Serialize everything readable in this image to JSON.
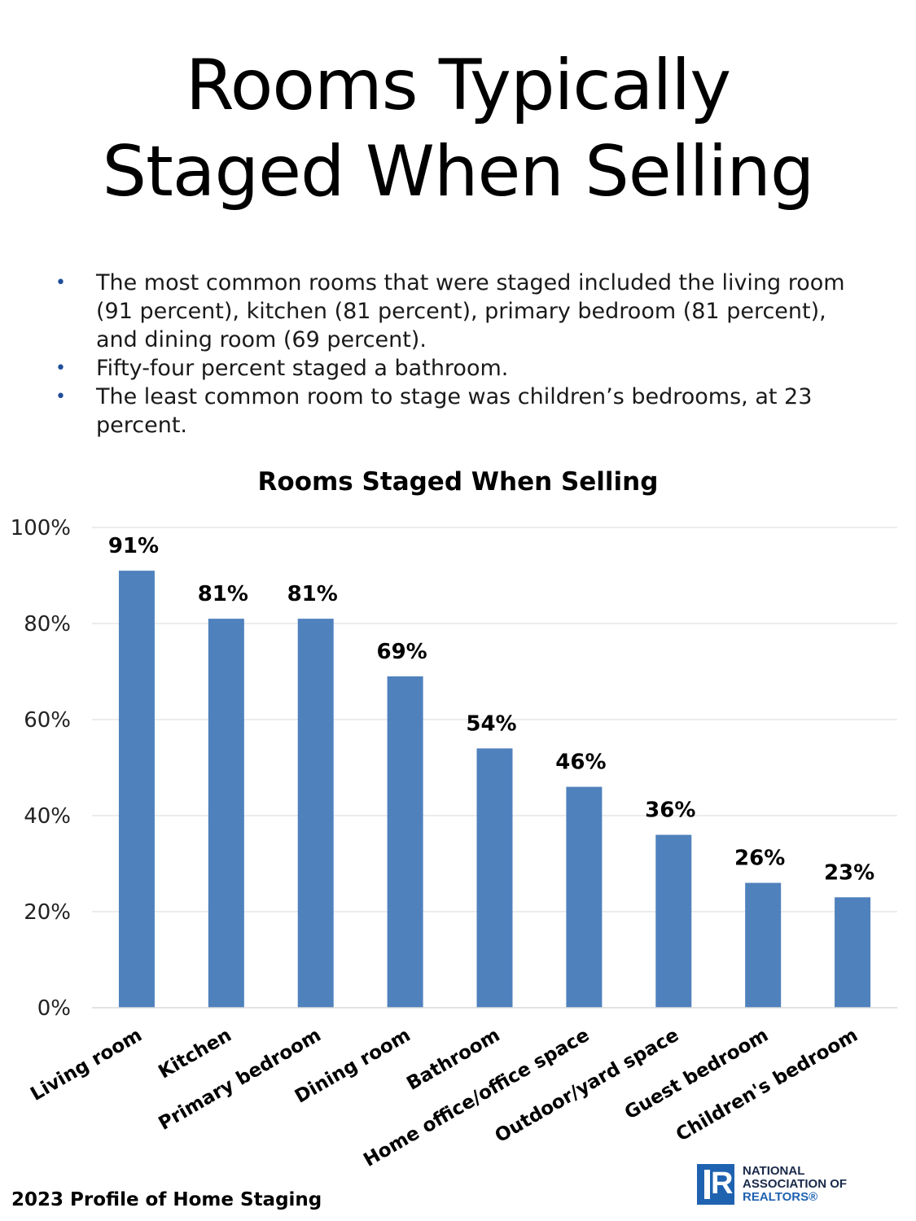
{
  "title_line1": "Rooms Typically",
  "title_line2": "Staged When Selling",
  "bullets": [
    "The most common rooms that were staged included the living room (91 percent), kitchen (81 percent), primary bedroom (81 percent), and dining room (69 percent).",
    "Fifty-four percent staged a bathroom.",
    "The least common room to stage was children’s bedrooms, at 23 percent."
  ],
  "bullet_symbol": "•",
  "footer": {
    "source": "2023 Profile of Home Staging"
  },
  "logo": {
    "line1": "NATIONAL",
    "line2": "ASSOCIATION OF",
    "line3": "REALTORS®",
    "mark_letter": "R"
  },
  "colors": {
    "bar": "#4f81bd",
    "gridline": "#d9d9d9",
    "bullet": "#1f4e9b",
    "logo": "#1f62b0"
  },
  "chart_data": {
    "type": "bar",
    "title": "Rooms Staged When Selling",
    "categories": [
      "Living room",
      "Kitchen",
      "Primary bedroom",
      "Dining room",
      "Bathroom",
      "Home office/office space",
      "Outdoor/yard space",
      "Guest bedroom",
      "Children's bedroom"
    ],
    "values": [
      91,
      81,
      81,
      69,
      54,
      46,
      36,
      26,
      23
    ],
    "data_labels": [
      "91%",
      "81%",
      "81%",
      "69%",
      "54%",
      "46%",
      "36%",
      "26%",
      "23%"
    ],
    "ylim": [
      0,
      100
    ],
    "yticks": [
      0,
      20,
      40,
      60,
      80,
      100
    ],
    "ytick_labels": [
      "0%",
      "20%",
      "40%",
      "60%",
      "80%",
      "100%"
    ],
    "xlabel": "",
    "ylabel": "",
    "grid": true,
    "legend": "none"
  }
}
